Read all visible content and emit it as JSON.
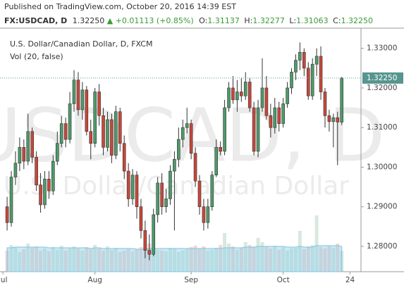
{
  "header": {
    "published": "Published on TradingView.com, October 20, 2016 14:39 EST",
    "symbol": "FX:USDCAD, D",
    "price": "1.32250",
    "arrow": "▲",
    "change": "+0.01113 (+0.85%)",
    "o_label": "O:",
    "o": "1.31137",
    "h_label": "H:",
    "h": "1.32277",
    "l_label": "L:",
    "l": "1.31063",
    "c_label": "C:",
    "c": "1.32250"
  },
  "chart_data": {
    "type": "candlestick",
    "legend": [
      "U.S. Dollar/Canadian Dollar, D, FXCM",
      "Vol (20, false)"
    ],
    "watermark": [
      "USDCAD, D",
      "U.S. Dollar/Canadian Dollar"
    ],
    "up_color": "#4f9a6a",
    "down_color": "#c8473a",
    "grid": false,
    "open": [
      1.29,
      1.286,
      1.2975,
      1.301,
      1.305,
      1.3015,
      1.309,
      1.3025,
      1.2955,
      1.2905,
      1.297,
      1.294,
      1.3015,
      1.306,
      1.311,
      1.307,
      1.316,
      1.322,
      1.3145,
      1.3195,
      1.309,
      1.306,
      1.319,
      1.313,
      1.305,
      1.312,
      1.303,
      1.314,
      1.306,
      1.299,
      1.292,
      1.298,
      1.29,
      1.284,
      1.279,
      1.278,
      1.288,
      1.296,
      1.29,
      1.292,
      1.299,
      1.302,
      1.307,
      1.31,
      1.311,
      1.3035,
      1.2965,
      1.29,
      1.286,
      1.29,
      1.298,
      1.305,
      1.304,
      1.315,
      1.32,
      1.317,
      1.319,
      1.318,
      1.3215,
      1.315,
      1.304,
      1.315,
      1.32,
      1.313,
      1.31,
      1.315,
      1.311,
      1.316,
      1.32,
      1.324,
      1.327,
      1.329,
      1.325,
      1.318,
      1.326,
      1.328,
      1.319,
      1.313,
      1.3115,
      1.3125,
      1.31137
    ],
    "high": [
      1.2925,
      1.299,
      1.304,
      1.3075,
      1.307,
      1.3135,
      1.31,
      1.304,
      1.2985,
      1.299,
      1.299,
      1.303,
      1.309,
      1.313,
      1.3125,
      1.319,
      1.3245,
      1.324,
      1.3215,
      1.3205,
      1.312,
      1.32,
      1.321,
      1.315,
      1.314,
      1.3135,
      1.3155,
      1.315,
      1.308,
      1.301,
      1.2995,
      1.299,
      1.292,
      1.2865,
      1.283,
      1.2895,
      1.2975,
      1.2985,
      1.2945,
      1.3005,
      1.304,
      1.31,
      1.312,
      1.315,
      1.312,
      1.305,
      1.298,
      1.292,
      1.292,
      1.299,
      1.307,
      1.3065,
      1.317,
      1.3215,
      1.323,
      1.322,
      1.3225,
      1.324,
      1.3225,
      1.3165,
      1.317,
      1.3275,
      1.323,
      1.316,
      1.3175,
      1.3165,
      1.3175,
      1.3215,
      1.325,
      1.3285,
      1.3315,
      1.33,
      1.3265,
      1.3275,
      1.33,
      1.3305,
      1.32,
      1.3145,
      1.3135,
      1.314,
      1.32277
    ],
    "low": [
      1.284,
      1.285,
      1.2955,
      1.299,
      1.2995,
      1.3005,
      1.301,
      1.294,
      1.2885,
      1.2895,
      1.292,
      1.293,
      1.3005,
      1.305,
      1.305,
      1.306,
      1.314,
      1.313,
      1.312,
      1.308,
      1.302,
      1.305,
      1.3105,
      1.303,
      1.304,
      1.301,
      1.302,
      1.304,
      1.297,
      1.29,
      1.2905,
      1.287,
      1.282,
      1.277,
      1.2765,
      1.2775,
      1.286,
      1.288,
      1.2885,
      1.2905,
      1.284,
      1.3,
      1.305,
      1.3085,
      1.302,
      1.295,
      1.288,
      1.284,
      1.2845,
      1.289,
      1.2975,
      1.303,
      1.303,
      1.314,
      1.316,
      1.314,
      1.3165,
      1.317,
      1.314,
      1.303,
      1.3025,
      1.314,
      1.312,
      1.3075,
      1.3085,
      1.309,
      1.31,
      1.315,
      1.3185,
      1.322,
      1.3245,
      1.323,
      1.317,
      1.317,
      1.323,
      1.317,
      1.31,
      1.309,
      1.305,
      1.3005,
      1.31063
    ],
    "close": [
      1.286,
      1.2975,
      1.301,
      1.305,
      1.3015,
      1.309,
      1.3025,
      1.2955,
      1.2905,
      1.297,
      1.294,
      1.3015,
      1.306,
      1.311,
      1.307,
      1.316,
      1.322,
      1.3145,
      1.3195,
      1.309,
      1.306,
      1.319,
      1.313,
      1.305,
      1.312,
      1.303,
      1.314,
      1.306,
      1.299,
      1.292,
      1.298,
      1.29,
      1.284,
      1.279,
      1.278,
      1.288,
      1.296,
      1.29,
      1.292,
      1.299,
      1.302,
      1.307,
      1.31,
      1.311,
      1.3035,
      1.2965,
      1.29,
      1.286,
      1.29,
      1.298,
      1.305,
      1.304,
      1.315,
      1.32,
      1.317,
      1.319,
      1.318,
      1.3215,
      1.315,
      1.304,
      1.315,
      1.32,
      1.313,
      1.31,
      1.315,
      1.311,
      1.316,
      1.32,
      1.324,
      1.327,
      1.329,
      1.325,
      1.318,
      1.326,
      1.328,
      1.319,
      1.313,
      1.3115,
      1.3125,
      1.3114,
      1.3225
    ],
    "volume": [
      30,
      38,
      35,
      28,
      32,
      40,
      34,
      36,
      30,
      33,
      29,
      35,
      31,
      37,
      30,
      34,
      36,
      33,
      30,
      35,
      32,
      38,
      33,
      30,
      36,
      31,
      34,
      28,
      30,
      33,
      29,
      32,
      35,
      38,
      40,
      36,
      31,
      30,
      29,
      34,
      33,
      28,
      30,
      32,
      35,
      37,
      33,
      36,
      30,
      31,
      34,
      38,
      55,
      40,
      36,
      31,
      34,
      42,
      38,
      35,
      48,
      42,
      36,
      33,
      37,
      31,
      35,
      30,
      33,
      34,
      58,
      32,
      36,
      38,
      80,
      35,
      33,
      36,
      34,
      40,
      30
    ],
    "volume_ma": [
      34,
      34,
      35,
      35,
      35,
      35,
      35,
      35,
      35,
      35,
      34,
      34,
      34,
      34,
      34,
      34,
      34,
      34,
      34,
      34,
      33,
      34,
      34,
      33,
      33,
      33,
      33,
      33,
      33,
      33,
      33,
      32,
      32,
      32,
      33,
      33,
      33,
      33,
      33,
      33,
      33,
      33,
      33,
      33,
      33,
      33,
      33,
      33,
      33,
      33,
      33,
      33,
      34,
      34,
      34,
      34,
      34,
      35,
      35,
      35,
      36,
      36,
      36,
      36,
      36,
      36,
      36,
      35,
      35,
      35,
      36,
      35,
      35,
      35,
      37,
      37,
      37,
      37,
      37,
      37,
      36
    ],
    "volume_ylim": [
      0,
      100
    ],
    "ylim": [
      1.2736,
      1.3351
    ],
    "yticks": [
      {
        "value": 1.28,
        "label": "1.28000"
      },
      {
        "value": 1.29,
        "label": "1.29000"
      },
      {
        "value": 1.3,
        "label": "1.30000"
      },
      {
        "value": 1.31,
        "label": "1.31000"
      },
      {
        "value": 1.32,
        "label": "1.32000"
      },
      {
        "value": 1.33,
        "label": "1.33000"
      }
    ],
    "last_price": {
      "value": 1.3225,
      "label": "1.32250",
      "color": "#58958f"
    },
    "xlim": [
      -1.7,
      84.6
    ],
    "xticks": [
      {
        "value": -1,
        "label": "Jul"
      },
      {
        "value": 21,
        "label": "Aug"
      },
      {
        "value": 44,
        "label": "Sep"
      },
      {
        "value": 66,
        "label": "Oct"
      },
      {
        "value": 82,
        "label": "24"
      }
    ]
  }
}
